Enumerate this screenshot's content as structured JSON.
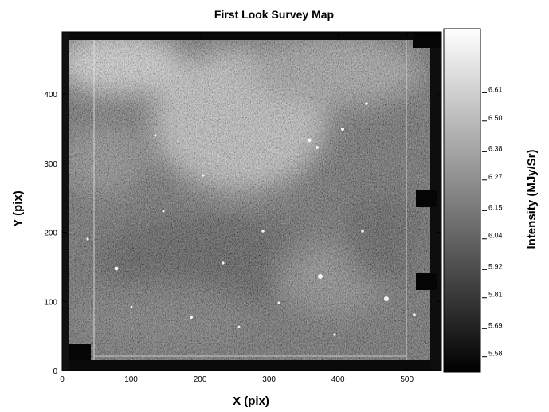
{
  "chart_data": {
    "type": "heatmap",
    "title": "First Look Survey Map",
    "xlabel": "X (pix)",
    "ylabel": "Y (pix)",
    "xlim": [
      0,
      550
    ],
    "ylim": [
      0,
      490
    ],
    "x_ticks": [
      "0",
      "100",
      "200",
      "300",
      "400",
      "500"
    ],
    "y_ticks": [
      "0",
      "100",
      "200",
      "300",
      "400"
    ],
    "colorbar": {
      "label": "Intensity (MJy/Sr)",
      "range": [
        5.52,
        6.86
      ],
      "ticks": [
        "6.61",
        "6.50",
        "6.38",
        "6.27",
        "6.15",
        "6.04",
        "5.92",
        "5.81",
        "5.69",
        "5.58"
      ],
      "colormap": "grayscale"
    },
    "colors": {
      "low": "#000000",
      "high": "#ffffff"
    }
  }
}
